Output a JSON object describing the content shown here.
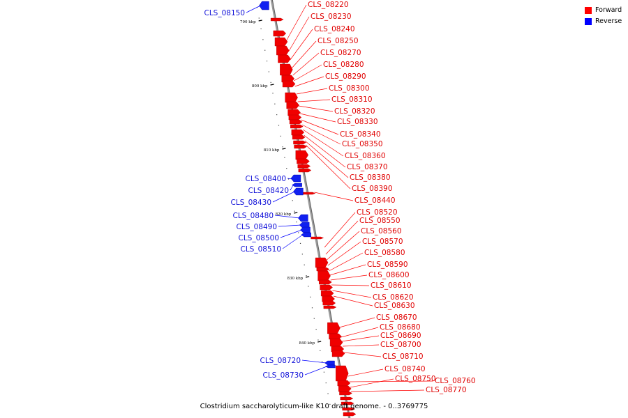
{
  "legend": {
    "forward_label": "Forward",
    "reverse_label": "Reverse",
    "forward_color": "#ff0000",
    "reverse_color": "#0000ff"
  },
  "caption": "Clostridium saccharolyticum-like K10 draft genome. - 0..3769775",
  "axis_ticks": [
    "790 kbp",
    "800 kbp",
    "810 kbp",
    "820 kbp",
    "830 kbp",
    "840 kbp"
  ],
  "forward_genes": [
    "CLS_08220",
    "CLS_08230",
    "CLS_08240",
    "CLS_08250",
    "CLS_08270",
    "CLS_08280",
    "CLS_08290",
    "CLS_08300",
    "CLS_08310",
    "CLS_08320",
    "CLS_08330",
    "CLS_08340",
    "CLS_08350",
    "CLS_08360",
    "CLS_08370",
    "CLS_08380",
    "CLS_08390",
    "CLS_08440",
    "CLS_08520",
    "CLS_08550",
    "CLS_08560",
    "CLS_08570",
    "CLS_08580",
    "CLS_08590",
    "CLS_08600",
    "CLS_08610",
    "CLS_08620",
    "CLS_08630",
    "CLS_08670",
    "CLS_08680",
    "CLS_08690",
    "CLS_08700",
    "CLS_08710",
    "CLS_08740",
    "CLS_08750",
    "CLS_08760",
    "CLS_08770"
  ],
  "reverse_genes": [
    "CLS_08150",
    "CLS_08400",
    "CLS_08420",
    "CLS_08430",
    "CLS_08480",
    "CLS_08490",
    "CLS_08500",
    "CLS_08510",
    "CLS_08720",
    "CLS_08730"
  ]
}
